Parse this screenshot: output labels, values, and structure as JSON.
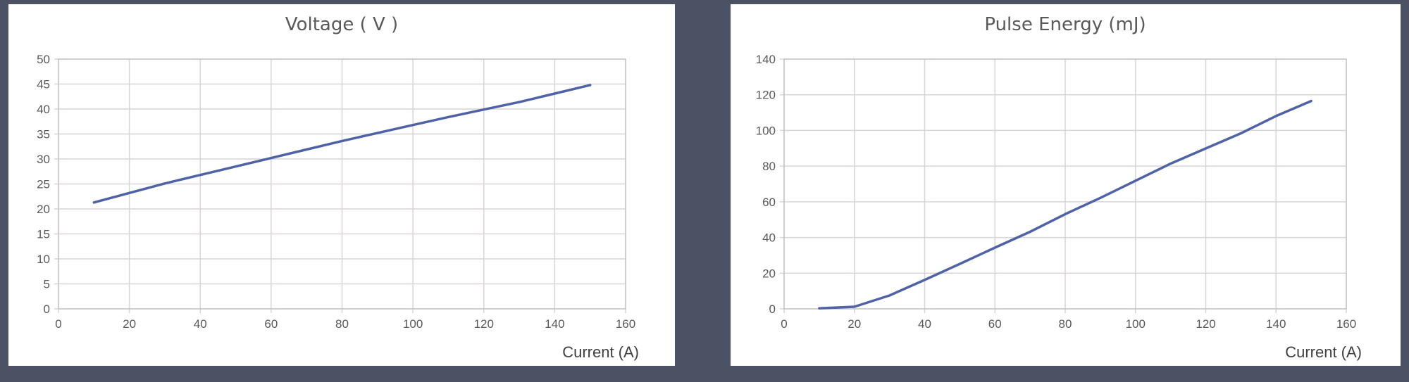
{
  "chart_data": [
    {
      "type": "line",
      "title": "Voltage ( V )",
      "xlabel": "Current (A)",
      "ylabel": "",
      "xlim": [
        0,
        160
      ],
      "ylim": [
        0,
        50
      ],
      "xticks": [
        0,
        20,
        40,
        60,
        80,
        100,
        120,
        140,
        160
      ],
      "yticks": [
        0,
        5,
        10,
        15,
        20,
        25,
        30,
        35,
        40,
        45,
        50
      ],
      "grid": true,
      "legend": "none",
      "color": "#4f62a8",
      "series": [
        {
          "x": [
            10,
            20,
            30,
            40,
            50,
            60,
            70,
            80,
            90,
            100,
            110,
            120,
            130,
            140,
            150
          ],
          "y": [
            21.3,
            23.2,
            25.1,
            26.8,
            28.5,
            30.2,
            31.9,
            33.6,
            35.2,
            36.8,
            38.4,
            39.9,
            41.4,
            43.1,
            44.8
          ]
        }
      ]
    },
    {
      "type": "line",
      "title": "Pulse Energy (mJ)",
      "xlabel": "Current (A)",
      "ylabel": "",
      "xlim": [
        0,
        160
      ],
      "ylim": [
        0,
        140
      ],
      "xticks": [
        0,
        20,
        40,
        60,
        80,
        100,
        120,
        140,
        160
      ],
      "yticks": [
        0,
        20,
        40,
        60,
        80,
        100,
        120,
        140
      ],
      "grid": true,
      "legend": "none",
      "color": "#4f62a8",
      "series": [
        {
          "x": [
            10,
            20,
            30,
            40,
            50,
            60,
            70,
            80,
            90,
            100,
            110,
            120,
            130,
            140,
            150
          ],
          "y": [
            0.3,
            1.2,
            7.5,
            16.2,
            25.2,
            34.3,
            43.2,
            53.1,
            62.2,
            71.8,
            81.4,
            89.9,
            98.4,
            108.1,
            116.5
          ]
        }
      ]
    }
  ]
}
